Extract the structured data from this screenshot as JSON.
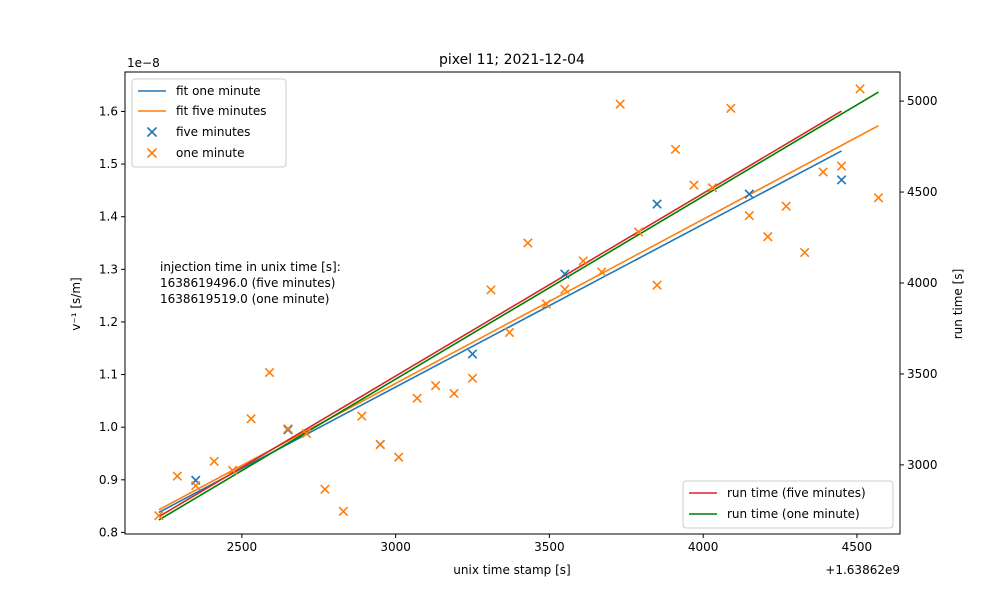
{
  "chart_data": {
    "type": "scatter",
    "title": "pixel 11; 2021-12-04",
    "xlabel": "unix time stamp [s]",
    "x_offset_label": "+1.63862e9",
    "ylabel_left": "v⁻¹ [s/m]",
    "ylabel_right": "run time [s]",
    "y_left_exponent": "1e−8",
    "xlim": [
      2120,
      4640
    ],
    "ylim_left": [
      0.797,
      1.675
    ],
    "ylim_right": [
      2620,
      5160
    ],
    "x_ticks": [
      2500,
      3000,
      3500,
      4000,
      4500
    ],
    "x_tick_labels": [
      "2500",
      "3000",
      "3500",
      "4000",
      "4500"
    ],
    "y_left_ticks": [
      0.8,
      0.9,
      1.0,
      1.1,
      1.2,
      1.3,
      1.4,
      1.5,
      1.6
    ],
    "y_left_tick_labels": [
      "0.8",
      "0.9",
      "1.0",
      "1.1",
      "1.2",
      "1.3",
      "1.4",
      "1.5",
      "1.6"
    ],
    "y_right_ticks": [
      3000,
      3500,
      4000,
      4500,
      5000
    ],
    "y_right_tick_labels": [
      "3000",
      "3500",
      "4000",
      "4500",
      "5000"
    ],
    "annotation": [
      "injection time in unix time [s]:",
      "1638619496.0 (five minutes)",
      "1638619519.0 (one minute)"
    ],
    "legend_left": {
      "placement": "top-left",
      "entries": [
        {
          "label": "fit one minute",
          "kind": "line",
          "color": "#1f77b4"
        },
        {
          "label": "fit five minutes",
          "kind": "line",
          "color": "#ff7f0e"
        },
        {
          "label": "five minutes",
          "kind": "marker",
          "color": "#1f77b4"
        },
        {
          "label": "one minute",
          "kind": "marker",
          "color": "#ff7f0e"
        }
      ]
    },
    "legend_right": {
      "placement": "lower-right",
      "entries": [
        {
          "label": "run time (five minutes)",
          "kind": "line",
          "color": "#d62728"
        },
        {
          "label": "run time (one minute)",
          "kind": "line",
          "color": "#008000"
        }
      ]
    },
    "series": [
      {
        "name": "five minutes",
        "kind": "scatter",
        "axis": "left",
        "color": "#1f77b4",
        "points": [
          [
            2350,
            0.899
          ],
          [
            2650,
            0.995
          ],
          [
            2950,
            0.967
          ],
          [
            3250,
            1.139
          ],
          [
            3550,
            1.291
          ],
          [
            3850,
            1.424
          ],
          [
            4150,
            1.443
          ],
          [
            4450,
            1.47
          ]
        ]
      },
      {
        "name": "one minute",
        "kind": "scatter",
        "axis": "left",
        "color": "#ff7f0e",
        "points": [
          [
            2230,
            0.832
          ],
          [
            2290,
            0.907
          ],
          [
            2350,
            0.889
          ],
          [
            2410,
            0.935
          ],
          [
            2470,
            0.918
          ],
          [
            2530,
            1.016
          ],
          [
            2590,
            1.104
          ],
          [
            2650,
            0.997
          ],
          [
            2710,
            0.988
          ],
          [
            2770,
            0.882
          ],
          [
            2830,
            0.84
          ],
          [
            2890,
            1.021
          ],
          [
            2950,
            0.967
          ],
          [
            3010,
            0.943
          ],
          [
            3070,
            1.055
          ],
          [
            3130,
            1.079
          ],
          [
            3190,
            1.064
          ],
          [
            3250,
            1.093
          ],
          [
            3310,
            1.261
          ],
          [
            3370,
            1.18
          ],
          [
            3430,
            1.35
          ],
          [
            3490,
            1.234
          ],
          [
            3550,
            1.262
          ],
          [
            3610,
            1.316
          ],
          [
            3670,
            1.295
          ],
          [
            3730,
            1.614
          ],
          [
            3790,
            1.371
          ],
          [
            3850,
            1.27
          ],
          [
            3910,
            1.528
          ],
          [
            3970,
            1.46
          ],
          [
            4030,
            1.455
          ],
          [
            4090,
            1.606
          ],
          [
            4150,
            1.402
          ],
          [
            4210,
            1.362
          ],
          [
            4270,
            1.42
          ],
          [
            4330,
            1.332
          ],
          [
            4390,
            1.485
          ],
          [
            4450,
            1.496
          ],
          [
            4510,
            1.643
          ],
          [
            4570,
            1.436
          ]
        ]
      },
      {
        "name": "fit one minute",
        "kind": "line",
        "axis": "left",
        "color": "#1f77b4",
        "points": [
          [
            2230,
            0.838
          ],
          [
            4450,
            1.525
          ]
        ]
      },
      {
        "name": "fit five minutes",
        "kind": "line",
        "axis": "left",
        "color": "#ff7f0e",
        "points": [
          [
            2230,
            0.843
          ],
          [
            4570,
            1.573
          ]
        ]
      },
      {
        "name": "run time (five minutes)",
        "kind": "line",
        "axis": "right",
        "color": "#d62728",
        "points": [
          [
            2230,
            2715
          ],
          [
            4450,
            4945
          ]
        ]
      },
      {
        "name": "run time (one minute)",
        "kind": "line",
        "axis": "right",
        "color": "#008000",
        "points": [
          [
            2230,
            2697
          ],
          [
            4570,
            5050
          ]
        ]
      }
    ]
  }
}
